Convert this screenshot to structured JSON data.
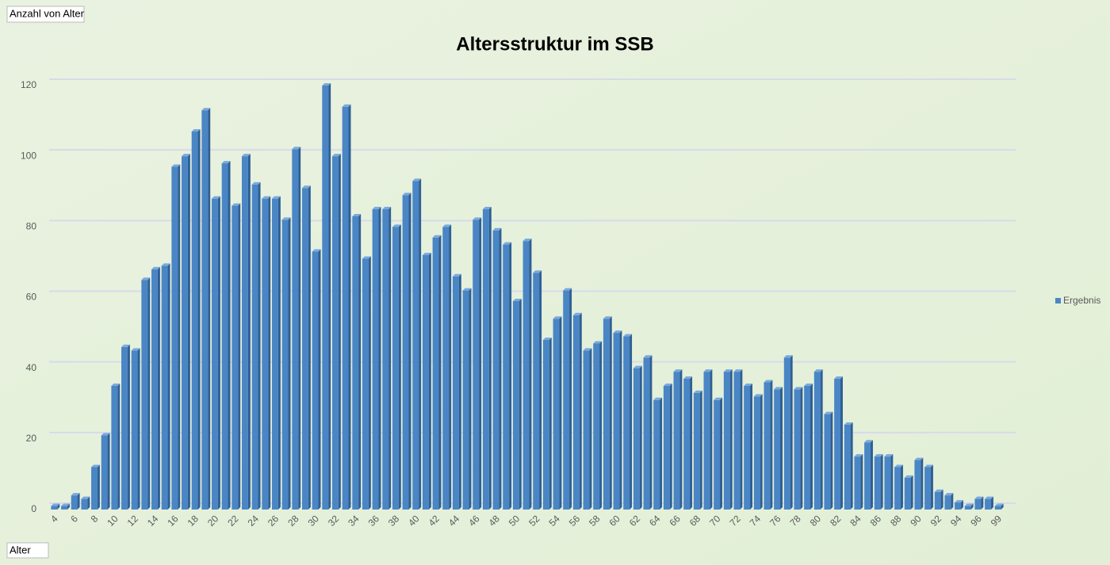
{
  "chart_data": {
    "type": "bar",
    "title": "Altersstruktur im SSB",
    "value_field_button": "Anzahl von Alter",
    "axis_field_button": "Alter",
    "categories": [
      "4",
      null,
      "6",
      null,
      "8",
      null,
      "10",
      null,
      "12",
      null,
      "14",
      null,
      "16",
      null,
      "18",
      null,
      "20",
      null,
      "22",
      null,
      "24",
      null,
      "26",
      null,
      "28",
      null,
      "30",
      null,
      "32",
      null,
      "34",
      null,
      "36",
      null,
      "38",
      null,
      "40",
      null,
      "42",
      null,
      "44",
      null,
      "46",
      null,
      "48",
      null,
      "50",
      null,
      "52",
      null,
      "54",
      null,
      "56",
      null,
      "58",
      null,
      "60",
      null,
      "62",
      null,
      "64",
      null,
      "66",
      null,
      "68",
      null,
      "70",
      null,
      "72",
      null,
      "74",
      null,
      "76",
      null,
      "78",
      null,
      "80",
      null,
      "82",
      null,
      "84",
      null,
      "86",
      null,
      "88",
      null,
      "90",
      null,
      "92",
      null,
      "94",
      null,
      "96",
      null,
      "99"
    ],
    "series": [
      {
        "name": "Ergebnis",
        "color": "#4a86c5",
        "values": [
          1,
          1,
          4,
          3,
          12,
          21,
          35,
          46,
          45,
          65,
          68,
          69,
          97,
          100,
          107,
          113,
          88,
          98,
          86,
          100,
          92,
          88,
          88,
          82,
          102,
          91,
          73,
          120,
          100,
          114,
          83,
          71,
          85,
          85,
          80,
          89,
          93,
          72,
          77,
          80,
          66,
          62,
          82,
          85,
          79,
          75,
          59,
          76,
          67,
          48,
          54,
          62,
          55,
          45,
          47,
          54,
          50,
          49,
          40,
          43,
          31,
          35,
          39,
          37,
          33,
          39,
          31,
          39,
          39,
          35,
          32,
          36,
          34,
          43,
          34,
          35,
          39,
          27,
          37,
          24,
          15,
          19,
          15,
          15,
          12,
          9,
          14,
          12,
          5,
          4,
          2,
          1,
          3,
          3,
          1
        ]
      }
    ],
    "ylim": [
      0,
      120
    ],
    "yticks": [
      0,
      20,
      40,
      60,
      80,
      100,
      120
    ],
    "grid": true,
    "legend": "right"
  }
}
